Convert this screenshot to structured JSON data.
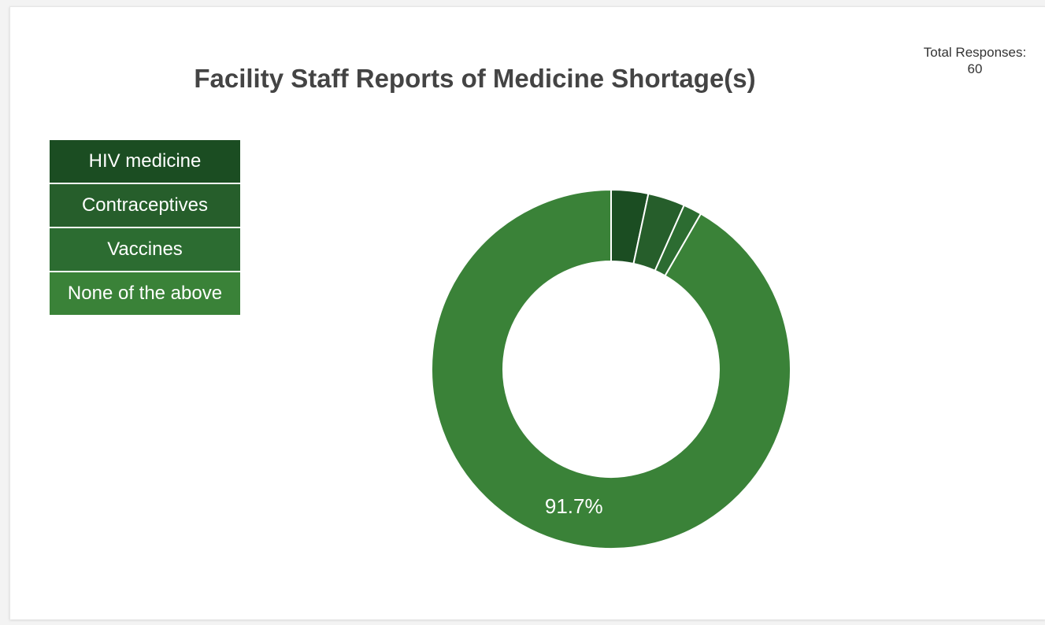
{
  "total": {
    "label": "Total Responses:",
    "value": "60"
  },
  "chart_data": {
    "type": "pie",
    "variant": "donut",
    "title": "Facility Staff Reports of Medicine Shortage(s)",
    "categories": [
      "HIV medicine",
      "Contraceptives",
      "Vaccines",
      "None of the above"
    ],
    "values": [
      2,
      2,
      1,
      55
    ],
    "percent_labels": [
      "",
      "",
      "",
      "91.7%"
    ],
    "colors": [
      "#1b4d22",
      "#265e2b",
      "#2c6c31",
      "#3a8238"
    ],
    "legend_position": "top-left"
  }
}
